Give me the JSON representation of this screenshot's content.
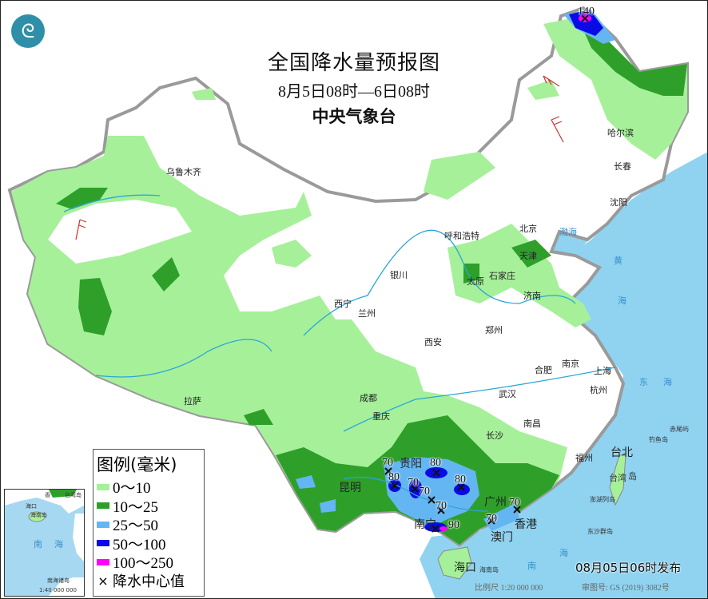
{
  "header": {
    "title": "全国降水量预报图",
    "period": "8月5日08时—6日08时",
    "issuer": "中央气象台"
  },
  "legend": {
    "title": "图例(毫米)",
    "items": [
      {
        "label": "0～10",
        "color": "#a6f09a"
      },
      {
        "label": "10～25",
        "color": "#2ea02a"
      },
      {
        "label": "25～50",
        "color": "#64b6f2"
      },
      {
        "label": "50～100",
        "color": "#0a0ae6"
      },
      {
        "label": "100～250",
        "color": "#ff00ff"
      }
    ],
    "center_marker": {
      "symbol": "×",
      "label": "降水中心值"
    }
  },
  "colors": {
    "sea": "#8fd3f0",
    "border": "#9a9a9a",
    "river": "#2aa6d8"
  },
  "cities": [
    "乌鲁木齐",
    "哈尔滨",
    "长春",
    "沈阳",
    "北京",
    "天津",
    "呼和浩特",
    "石家庄",
    "太原",
    "济南",
    "银川",
    "西宁",
    "兰州",
    "西安",
    "郑州",
    "合肥",
    "南京",
    "上海",
    "杭州",
    "武汉",
    "成都",
    "重庆",
    "拉萨",
    "长沙",
    "南昌",
    "福州",
    "台北",
    "贵阳",
    "昆明",
    "南宁",
    "广州",
    "香港",
    "澳门",
    "海口"
  ],
  "seas": [
    "渤海",
    "黄",
    "海",
    "东",
    "海",
    "南",
    "海",
    "台湾",
    "岛",
    "钓鱼岛",
    "澎湖列岛",
    "东沙群岛",
    "海南岛",
    "赤尾屿"
  ],
  "precip_centers": [
    "140",
    "70",
    "80",
    "70",
    "80",
    "70",
    "70",
    "80",
    "90",
    "70",
    "70"
  ],
  "inset": {
    "labels": [
      "海口",
      "海南岛",
      "南",
      "海",
      "南海诸岛",
      "1:40 000 000",
      "香",
      "台湾岛"
    ]
  },
  "footer": {
    "issued": "08月05日06时发布",
    "scale": "比例尺  1:20 000 000",
    "approval": "审图号: GS (2019) 3082号"
  }
}
